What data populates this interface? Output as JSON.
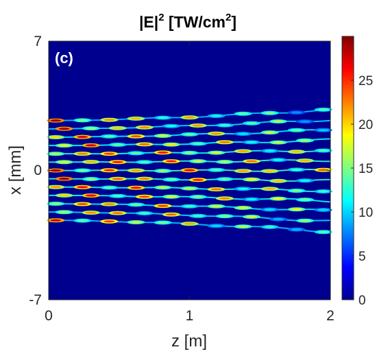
{
  "chart_data": {
    "type": "heatmap",
    "title": {
      "prefix": "|E|",
      "superscript": "2",
      "units_open": " [TW/cm",
      "units_superscript": "2",
      "units_close": "]"
    },
    "panel_label": "(c)",
    "xlabel": "z [m]",
    "ylabel": "x [mm]",
    "xlim": [
      0,
      2
    ],
    "ylim": [
      -7,
      7
    ],
    "xticks": [
      0,
      1,
      2
    ],
    "xtick_labels": [
      "0",
      "1",
      "2"
    ],
    "yticks": [
      -7,
      0,
      7
    ],
    "ytick_labels": [
      "-7",
      "0",
      "7"
    ],
    "colorbar": {
      "range": [
        0,
        30
      ],
      "ticks": [
        0,
        5,
        10,
        15,
        20,
        25
      ],
      "tick_labels": [
        "0",
        "5",
        "10",
        "15",
        "20",
        "25"
      ],
      "colormap": "jet"
    },
    "beam": {
      "filament_count": 13,
      "initial_half_width_mm": 2.7,
      "final_half_width_mm": 3.3,
      "background_value": 0.5,
      "peak_value": 29
    }
  }
}
